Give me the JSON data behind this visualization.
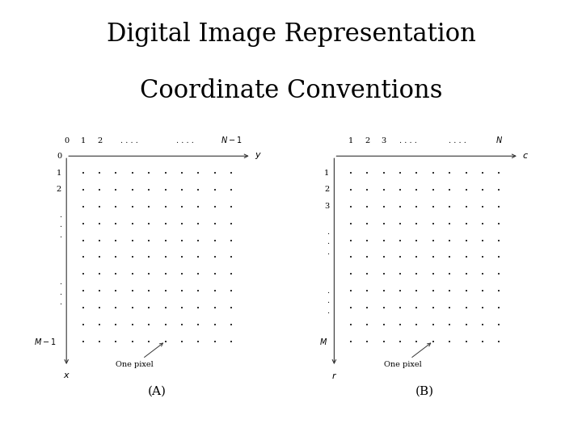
{
  "title_line1": "Digital Image Representation",
  "title_line2": "Coordinate Conventions",
  "background_color": "#ffffff",
  "dot_color": "#333333",
  "axis_color": "#333333",
  "label_color": "#000000",
  "title_fontsize": 22,
  "label_fontsize": 7,
  "annot_fontsize": 7,
  "panel_label_fontsize": 11,
  "grid_cols": 10,
  "grid_rows": 11,
  "panel_A_label": "(A)",
  "panel_B_label": "(B)",
  "one_pixel_label": "One pixel"
}
